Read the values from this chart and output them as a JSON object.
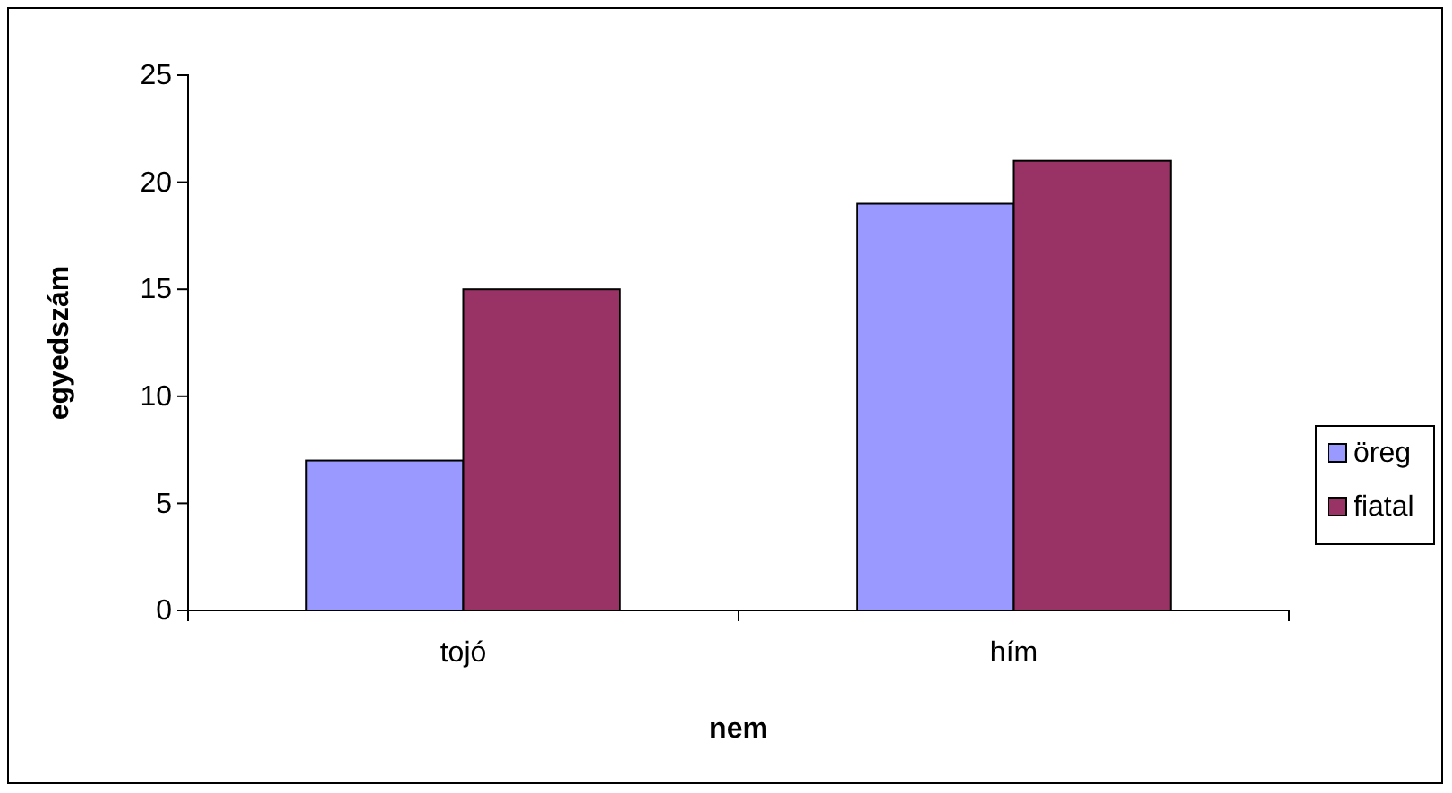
{
  "chart_data": {
    "type": "bar",
    "xlabel": "nem",
    "ylabel": "egyedszám",
    "categories": [
      "tojó",
      "hím"
    ],
    "series": [
      {
        "name": "öreg",
        "color": "#9999ff",
        "values": [
          7,
          19
        ]
      },
      {
        "name": "fiatal",
        "color": "#993366",
        "values": [
          15,
          21
        ]
      }
    ],
    "ylim": [
      0,
      25
    ],
    "yticks": [
      0,
      5,
      10,
      15,
      20,
      25
    ],
    "grid": false,
    "legend": "right"
  }
}
